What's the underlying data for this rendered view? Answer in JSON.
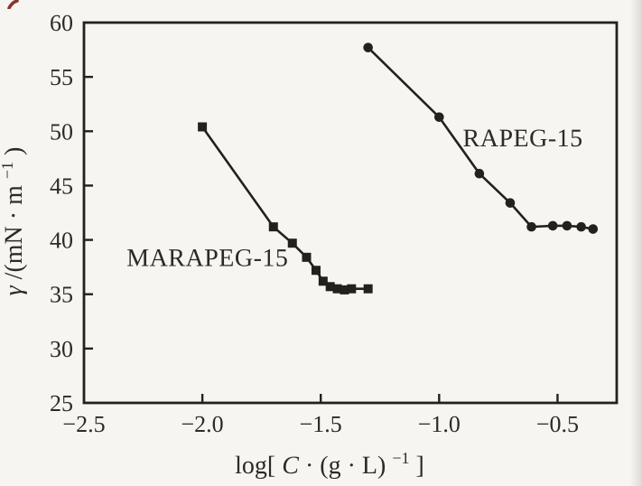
{
  "figure": {
    "background": "#f6f5f2",
    "ink": "#23201d",
    "text_color": "#2c2a27",
    "corner_mark_color": "#8a342c"
  },
  "chart_data": {
    "type": "line",
    "title": "",
    "xlabel": "log[C · (g · L)⁻¹]",
    "ylabel": "γ /(mN · m⁻¹)",
    "xlabel_parts": {
      "pre": "log[",
      "var": "C",
      "mid": " · (g · L)",
      "sup": "−1",
      "post": "]"
    },
    "ylabel_parts": {
      "var": "γ",
      "mid": " /(mN · m",
      "sup": "−1",
      "post": ")"
    },
    "xlim": [
      -2.5,
      -0.25
    ],
    "ylim": [
      25,
      60
    ],
    "grid": false,
    "legend": "inline-labels",
    "x_ticks": [
      -2.5,
      -2.0,
      -1.5,
      -1.0,
      -0.5
    ],
    "x_tick_labels": [
      "−2.5",
      "−2.0",
      "−1.5",
      "−1.0",
      "−0.5"
    ],
    "y_ticks": [
      25,
      30,
      35,
      40,
      45,
      50,
      55,
      60
    ],
    "y_tick_labels": [
      "25",
      "30",
      "35",
      "40",
      "45",
      "50",
      "55",
      "60"
    ],
    "series": [
      {
        "name": "MARAPEG-15",
        "marker": "square",
        "color": "#23201d",
        "points": [
          [
            -2.0,
            50.4
          ],
          [
            -1.7,
            41.2
          ],
          [
            -1.62,
            39.7
          ],
          [
            -1.56,
            38.4
          ],
          [
            -1.52,
            37.2
          ],
          [
            -1.49,
            36.2
          ],
          [
            -1.46,
            35.7
          ],
          [
            -1.43,
            35.5
          ],
          [
            -1.4,
            35.4
          ],
          [
            -1.37,
            35.5
          ],
          [
            -1.3,
            35.5
          ]
        ]
      },
      {
        "name": "RAPEG-15",
        "marker": "circle",
        "color": "#23201d",
        "points": [
          [
            -1.3,
            57.7
          ],
          [
            -1.0,
            51.3
          ],
          [
            -0.83,
            46.1
          ],
          [
            -0.7,
            43.4
          ],
          [
            -0.61,
            41.2
          ],
          [
            -0.52,
            41.3
          ],
          [
            -0.46,
            41.3
          ],
          [
            -0.4,
            41.2
          ],
          [
            -0.35,
            41.0
          ]
        ]
      }
    ],
    "annotations": [
      {
        "text": "MARAPEG-15",
        "x": -2.32,
        "y": 37.6,
        "anchor": "start"
      },
      {
        "text": "RAPEG-15",
        "x": -0.9,
        "y": 48.6,
        "anchor": "start"
      }
    ]
  }
}
